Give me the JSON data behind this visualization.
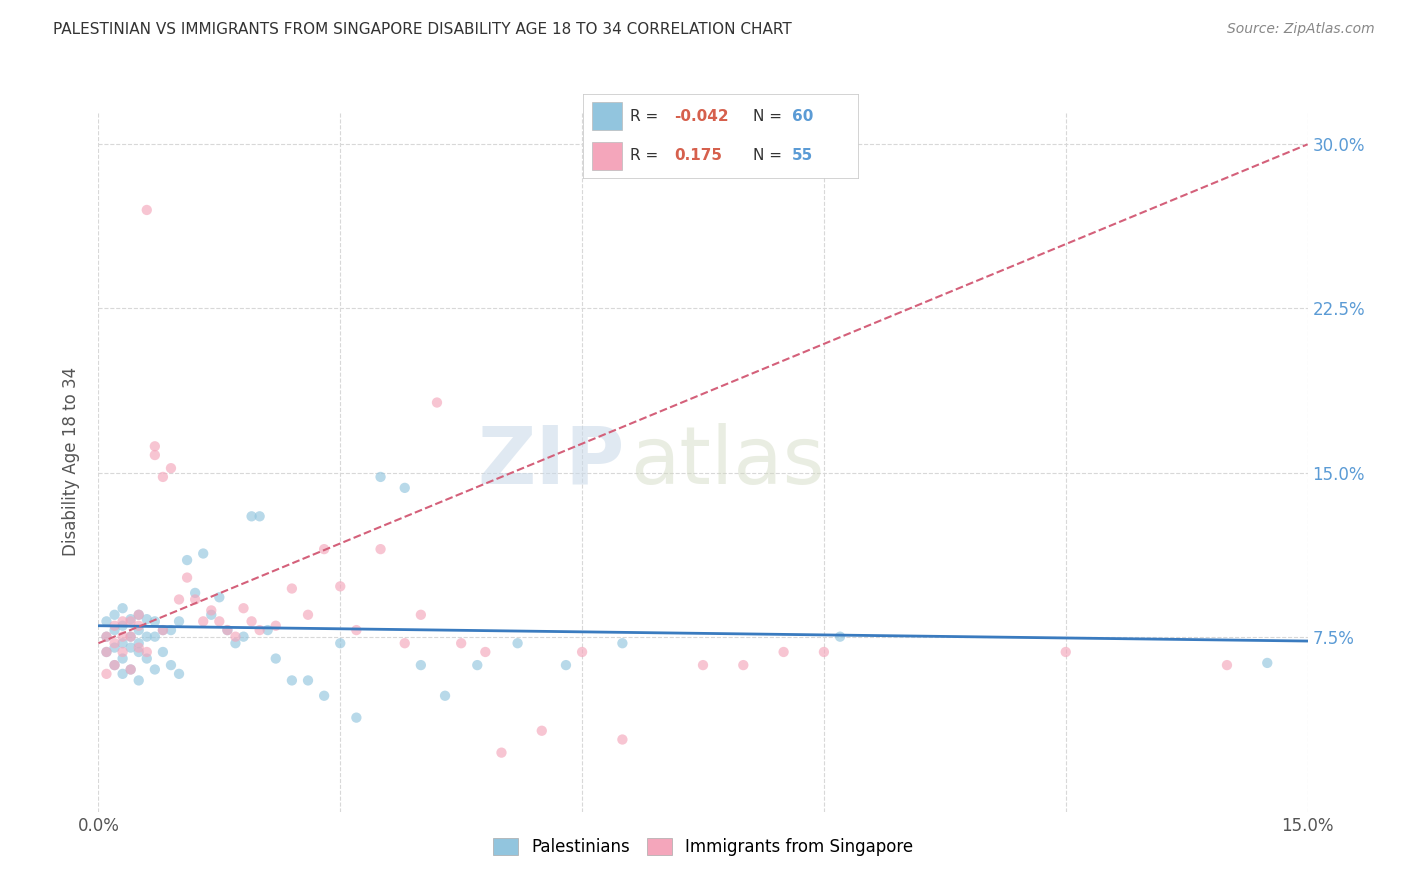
{
  "title": "PALESTINIAN VS IMMIGRANTS FROM SINGAPORE DISABILITY AGE 18 TO 34 CORRELATION CHART",
  "source": "Source: ZipAtlas.com",
  "ylabel": "Disability Age 18 to 34",
  "xlim": [
    0.0,
    0.15
  ],
  "ylim": [
    -0.005,
    0.315
  ],
  "yticks": [
    0.075,
    0.15,
    0.225,
    0.3
  ],
  "ytick_labels": [
    "7.5%",
    "15.0%",
    "22.5%",
    "30.0%"
  ],
  "background_color": "#ffffff",
  "grid_color": "#d8d8d8",
  "watermark_part1": "ZIP",
  "watermark_part2": "atlas",
  "legend_r_blue": "-0.042",
  "legend_n_blue": "60",
  "legend_r_pink": "0.175",
  "legend_n_pink": "55",
  "blue_color": "#92c5de",
  "pink_color": "#f4a6bb",
  "blue_line_color": "#3a7bbf",
  "pink_line_color": "#d4607a",
  "scatter_alpha": 0.65,
  "scatter_size": 55,
  "palestinians_x": [
    0.001,
    0.001,
    0.001,
    0.002,
    0.002,
    0.002,
    0.002,
    0.003,
    0.003,
    0.003,
    0.003,
    0.003,
    0.004,
    0.004,
    0.004,
    0.004,
    0.005,
    0.005,
    0.005,
    0.005,
    0.005,
    0.006,
    0.006,
    0.006,
    0.007,
    0.007,
    0.007,
    0.008,
    0.008,
    0.009,
    0.009,
    0.01,
    0.01,
    0.011,
    0.012,
    0.013,
    0.014,
    0.015,
    0.016,
    0.017,
    0.018,
    0.019,
    0.02,
    0.021,
    0.022,
    0.024,
    0.026,
    0.028,
    0.03,
    0.032,
    0.035,
    0.038,
    0.04,
    0.043,
    0.047,
    0.052,
    0.058,
    0.065,
    0.092,
    0.145
  ],
  "palestinians_y": [
    0.075,
    0.068,
    0.082,
    0.062,
    0.078,
    0.085,
    0.07,
    0.058,
    0.072,
    0.08,
    0.088,
    0.065,
    0.06,
    0.075,
    0.083,
    0.07,
    0.055,
    0.068,
    0.078,
    0.085,
    0.072,
    0.065,
    0.075,
    0.083,
    0.06,
    0.075,
    0.082,
    0.068,
    0.078,
    0.062,
    0.078,
    0.058,
    0.082,
    0.11,
    0.095,
    0.113,
    0.085,
    0.093,
    0.078,
    0.072,
    0.075,
    0.13,
    0.13,
    0.078,
    0.065,
    0.055,
    0.055,
    0.048,
    0.072,
    0.038,
    0.148,
    0.143,
    0.062,
    0.048,
    0.062,
    0.072,
    0.062,
    0.072,
    0.075,
    0.063
  ],
  "singapore_x": [
    0.001,
    0.001,
    0.001,
    0.002,
    0.002,
    0.002,
    0.003,
    0.003,
    0.003,
    0.004,
    0.004,
    0.004,
    0.005,
    0.005,
    0.005,
    0.006,
    0.006,
    0.007,
    0.007,
    0.008,
    0.008,
    0.009,
    0.01,
    0.011,
    0.012,
    0.013,
    0.014,
    0.015,
    0.016,
    0.017,
    0.018,
    0.019,
    0.02,
    0.022,
    0.024,
    0.026,
    0.028,
    0.03,
    0.032,
    0.035,
    0.038,
    0.04,
    0.042,
    0.045,
    0.048,
    0.05,
    0.055,
    0.06,
    0.065,
    0.075,
    0.08,
    0.085,
    0.09,
    0.12,
    0.14
  ],
  "singapore_y": [
    0.068,
    0.075,
    0.058,
    0.072,
    0.08,
    0.062,
    0.075,
    0.068,
    0.082,
    0.06,
    0.075,
    0.082,
    0.07,
    0.08,
    0.085,
    0.068,
    0.27,
    0.162,
    0.158,
    0.148,
    0.078,
    0.152,
    0.092,
    0.102,
    0.092,
    0.082,
    0.087,
    0.082,
    0.078,
    0.075,
    0.088,
    0.082,
    0.078,
    0.08,
    0.097,
    0.085,
    0.115,
    0.098,
    0.078,
    0.115,
    0.072,
    0.085,
    0.182,
    0.072,
    0.068,
    0.022,
    0.032,
    0.068,
    0.028,
    0.062,
    0.062,
    0.068,
    0.068,
    0.068,
    0.062
  ]
}
